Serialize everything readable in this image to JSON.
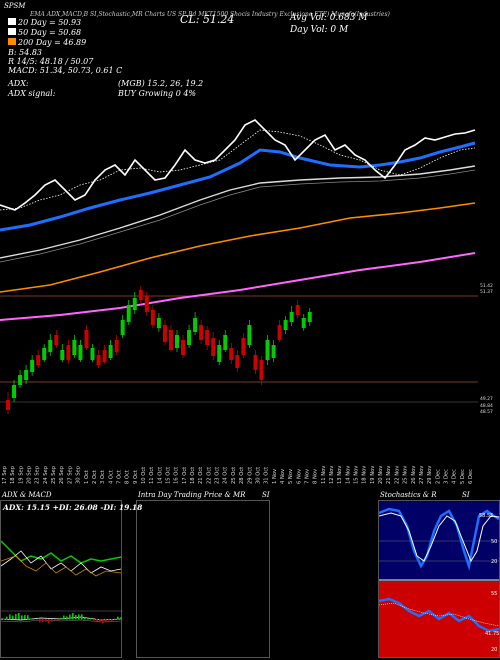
{
  "header": {
    "code": "SPSM",
    "title_fragments": [
      "(S",
      "EMA",
      "(",
      "ADX,MACD,B",
      "SI,Stochastic,MR",
      "Charts",
      "SP",
      "US",
      "SP Bd MKT1500 Shocis Industry Exclusione ETF) Munafa(Industries)"
    ],
    "lines": [
      {
        "label": "20 Day = 50.93",
        "color": "#ffffff"
      },
      {
        "label": "50 Day = 50.68",
        "color": "#ffffff"
      },
      {
        "label": "200 Day = 46.89",
        "color": "#ff8c00"
      },
      {
        "label": "B: 54.83",
        "color": "#ffffff"
      },
      {
        "label": "R 14/5: 48.18 / 50.07",
        "color": "#ffffff"
      },
      {
        "label": "MACD: 51.34, 50.73, 0.61 C",
        "color": "#ffffff"
      }
    ],
    "close": "CL: 51.24",
    "avg_vol": "Avg Vol: 0.683 M",
    "day_vol": "Day Vol: 0   M",
    "adx": "ADX:",
    "adx_values": "(MGB) 15.2,  26,  19.2",
    "adx_signal": "ADX  signal:",
    "adx_signal_value": "BUY Growing 0 4%"
  },
  "price_axis_labels": [
    "51.42",
    "51.37",
    "49.27",
    "48.84",
    "48.57"
  ],
  "x_labels": [
    "17 Sep",
    "18 Sep",
    "19 Sep",
    "20 Sep",
    "23 Sep",
    "24 Sep",
    "25 Sep",
    "26 Sep",
    "27 Sep",
    "30 Sep",
    "1 Oct",
    "2 Oct",
    "3 Oct",
    "4 Oct",
    "7 Oct",
    "8 Oct",
    "9 Oct",
    "10 Oct",
    "11 Oct",
    "14 Oct",
    "15 Oct",
    "16 Oct",
    "17 Oct",
    "18 Oct",
    "21 Oct",
    "22 Oct",
    "23 Oct",
    "24 Oct",
    "25 Oct",
    "28 Oct",
    "29 Oct",
    "30 Oct",
    "31 Oct",
    "1 Nov",
    "4 Nov",
    "5 Nov",
    "6 Nov",
    "7 Nov",
    "8 Nov",
    "11 Nov",
    "12 Nov",
    "13 Nov",
    "14 Nov",
    "15 Nov",
    "18 Nov",
    "19 Nov",
    "20 Nov",
    "21 Nov",
    "22 Nov",
    "25 Nov",
    "26 Nov",
    "27 Nov",
    "29 Nov",
    "2 Dec",
    "3 Dec",
    "4 Dec",
    "5 Dec",
    "6 Dec"
  ],
  "panels": {
    "adx_macd": {
      "title": "ADX  & MACD",
      "values": "ADX: 15.15 +DI: 26.08 -DI: 19.18"
    },
    "intraday": {
      "title": "Intra  Day Trading Price  & MR",
      "si": "SI"
    },
    "stoch": {
      "title": "Stochastics & R",
      "si": "SI",
      "labels": [
        "58.55",
        "50",
        "20",
        "55",
        "41.75",
        "20"
      ]
    }
  },
  "colors": {
    "up": "#00cc00",
    "down": "#cc0000",
    "ma_blue": "#1e6fff",
    "ma_orange": "#ff8c00",
    "ma_magenta": "#ff66ff",
    "stoch_bg": "#cc0000",
    "stoch_bg2": "#000066"
  },
  "chart_data": {
    "type": "candlestick",
    "title": "SP Bd MKT1500 Shocis Industry Exclusione ETF",
    "x": [
      "17 Sep",
      "18 Sep",
      "19 Sep",
      "20 Sep",
      "23 Sep",
      "24 Sep",
      "25 Sep",
      "26 Sep",
      "27 Sep",
      "30 Sep",
      "1 Oct",
      "2 Oct",
      "3 Oct",
      "4 Oct",
      "7 Oct",
      "8 Oct",
      "9 Oct",
      "10 Oct",
      "11 Oct",
      "14 Oct",
      "15 Oct",
      "16 Oct",
      "17 Oct",
      "18 Oct",
      "21 Oct",
      "22 Oct",
      "23 Oct",
      "24 Oct",
      "25 Oct",
      "28 Oct",
      "29 Oct",
      "30 Oct",
      "31 Oct",
      "1 Nov",
      "4 Nov",
      "5 Nov",
      "6 Nov",
      "7 Nov",
      "8 Nov",
      "11 Nov",
      "12 Nov",
      "13 Nov",
      "14 Nov",
      "15 Nov",
      "18 Nov",
      "19 Nov",
      "20 Nov",
      "21 Nov",
      "22 Nov",
      "25 Nov",
      "26 Nov",
      "27 Nov",
      "29 Nov",
      "2 Dec",
      "3 Dec",
      "4 Dec",
      "5 Dec",
      "6 Dec"
    ],
    "ohlc_sample": [
      {
        "o": 48.6,
        "h": 48.75,
        "l": 48.45,
        "c": 48.7,
        "dir": "up"
      },
      {
        "o": 48.9,
        "h": 49.1,
        "l": 48.8,
        "c": 49.05,
        "dir": "up"
      },
      {
        "o": 49.1,
        "h": 49.3,
        "l": 49.0,
        "c": 49.2,
        "dir": "up"
      }
    ],
    "ylim": [
      48.4,
      52.2
    ]
  }
}
